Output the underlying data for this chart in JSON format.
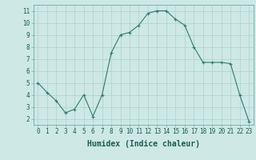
{
  "x": [
    0,
    1,
    2,
    3,
    4,
    5,
    6,
    7,
    8,
    9,
    10,
    11,
    12,
    13,
    14,
    15,
    16,
    17,
    18,
    19,
    20,
    21,
    22,
    23
  ],
  "y": [
    5.0,
    4.2,
    3.5,
    2.5,
    2.8,
    4.0,
    2.2,
    4.0,
    7.5,
    9.0,
    9.2,
    9.8,
    10.8,
    11.0,
    11.0,
    10.3,
    9.8,
    8.0,
    6.7,
    6.7,
    6.7,
    6.6,
    4.0,
    1.8
  ],
  "xlabel": "Humidex (Indice chaleur)",
  "line_color": "#2e7d6e",
  "marker_color": "#2e7d6e",
  "bg_color": "#cde8e5",
  "grid_color": "#b0cfcc",
  "axes_bg": "#cde8e5",
  "xlim": [
    -0.5,
    23.5
  ],
  "ylim": [
    1.5,
    11.5
  ],
  "yticks": [
    2,
    3,
    4,
    5,
    6,
    7,
    8,
    9,
    10,
    11
  ],
  "xticks": [
    0,
    1,
    2,
    3,
    4,
    5,
    6,
    7,
    8,
    9,
    10,
    11,
    12,
    13,
    14,
    15,
    16,
    17,
    18,
    19,
    20,
    21,
    22,
    23
  ],
  "tick_label_size": 5.5,
  "xlabel_size": 7.0
}
